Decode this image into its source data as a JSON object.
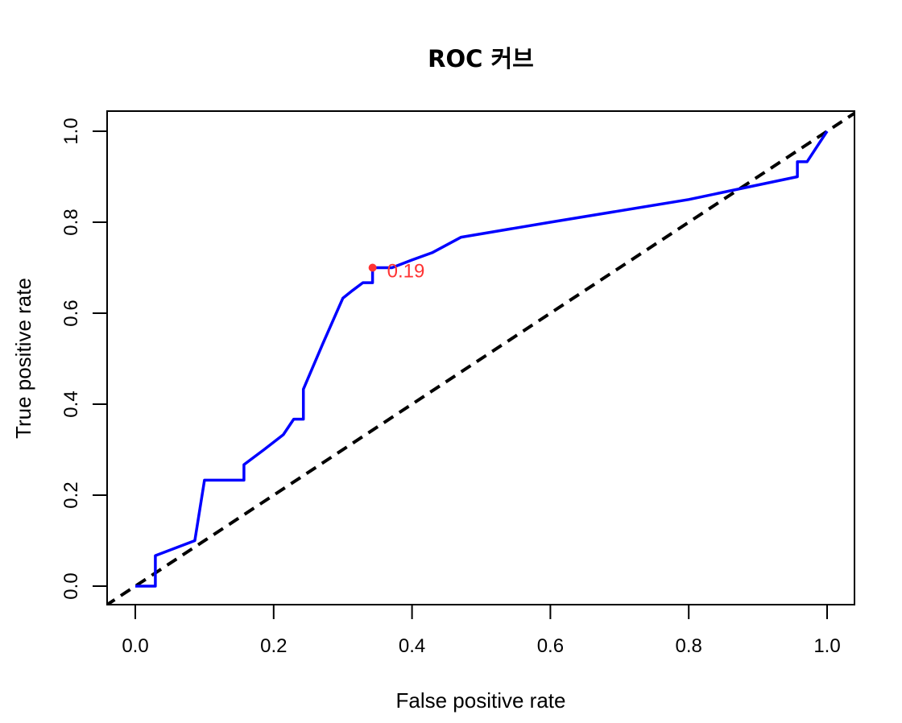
{
  "chart_data": {
    "type": "line",
    "title": "ROC 커브",
    "xlabel": "False positive rate",
    "ylabel": "True positive rate",
    "xlim": [
      0,
      1
    ],
    "ylim": [
      0,
      1
    ],
    "x_ticks": [
      "0.0",
      "0.2",
      "0.4",
      "0.6",
      "0.8",
      "1.0"
    ],
    "y_ticks": [
      "0.0",
      "0.2",
      "0.4",
      "0.6",
      "0.8",
      "1.0"
    ],
    "grid": false,
    "legend": "none",
    "series": [
      {
        "color": "#0000ff",
        "x": [
          0.0,
          0.029,
          0.029,
          0.086,
          0.1,
          0.157,
          0.157,
          0.186,
          0.214,
          0.229,
          0.243,
          0.243,
          0.271,
          0.3,
          0.314,
          0.329,
          0.343,
          0.343,
          0.371,
          0.4,
          0.429,
          0.471,
          0.6,
          0.8,
          0.957,
          0.957,
          0.971,
          1.0
        ],
        "y": [
          0.0,
          0.0,
          0.067,
          0.1,
          0.233,
          0.233,
          0.267,
          0.3,
          0.333,
          0.367,
          0.367,
          0.433,
          0.533,
          0.633,
          0.65,
          0.667,
          0.667,
          0.7,
          0.7,
          0.717,
          0.733,
          0.767,
          0.8,
          0.85,
          0.9,
          0.933,
          0.933,
          1.0
        ]
      },
      {
        "color": "#000000",
        "style": "dashed",
        "x": [
          -0.2,
          1.2
        ],
        "y": [
          -0.2,
          1.2
        ]
      }
    ],
    "annotation": {
      "x": 0.343,
      "y": 0.7,
      "text": "0.19",
      "color": "#ff3333"
    }
  }
}
